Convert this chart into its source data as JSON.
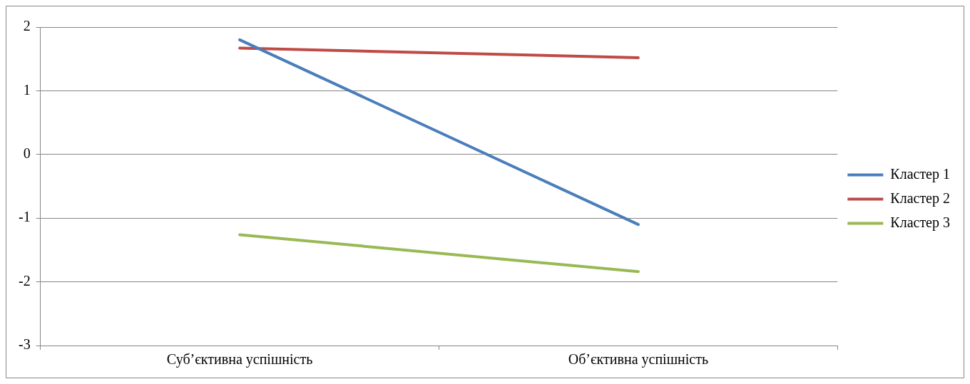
{
  "chart_data": {
    "type": "line",
    "categories": [
      "Суб’єктивна успішність",
      "Об’єктивна успішність"
    ],
    "series": [
      {
        "name": "Кластер 1",
        "color": "#4a7ebb",
        "values": [
          1.8,
          -1.1
        ]
      },
      {
        "name": "Кластер 2",
        "color": "#be4b48",
        "values": [
          1.67,
          1.52
        ]
      },
      {
        "name": "Кластер 3",
        "color": "#98b954",
        "values": [
          -1.26,
          -1.84
        ]
      }
    ],
    "ylim": [
      -3,
      2
    ],
    "yticks": [
      -3,
      -2,
      -1,
      0,
      1,
      2
    ],
    "grid": "y",
    "legend": "right",
    "marker": "none",
    "line_style": "solid"
  }
}
